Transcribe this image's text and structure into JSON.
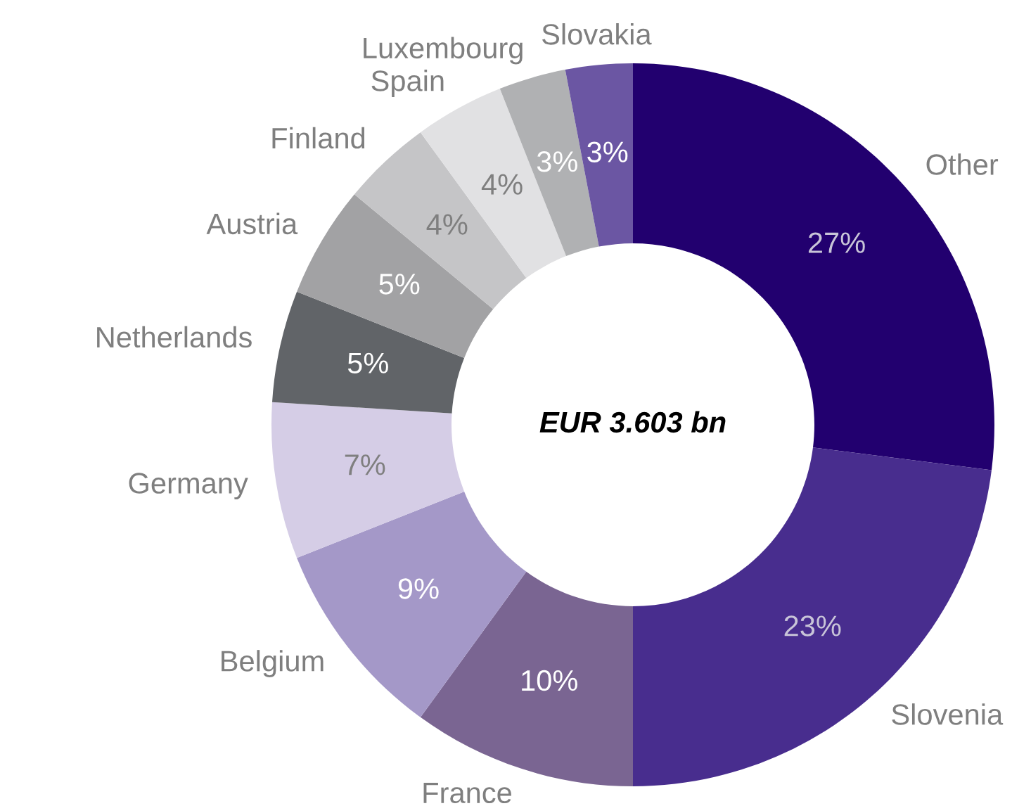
{
  "chart_data": {
    "type": "donut",
    "categories": [
      "Other",
      "Slovenia",
      "France",
      "Belgium",
      "Germany",
      "Netherlands",
      "Austria",
      "Finland",
      "Spain",
      "Luxembourg",
      "Slovakia"
    ],
    "values": [
      27,
      23,
      10,
      9,
      7,
      5,
      5,
      4,
      4,
      3,
      3
    ],
    "colors": [
      "#22006f",
      "#482d8e",
      "#7a6592",
      "#a498c8",
      "#d5cde6",
      "#616468",
      "#a2a2a4",
      "#c5c5c7",
      "#e1e1e3",
      "#b0b1b3",
      "#6b56a3"
    ],
    "value_labels": [
      "27%",
      "23%",
      "10%",
      "9%",
      "7%",
      "5%",
      "5%",
      "4%",
      "4%",
      "3%",
      "3%"
    ],
    "annotations": [
      "EUR 3.603 bn"
    ]
  }
}
